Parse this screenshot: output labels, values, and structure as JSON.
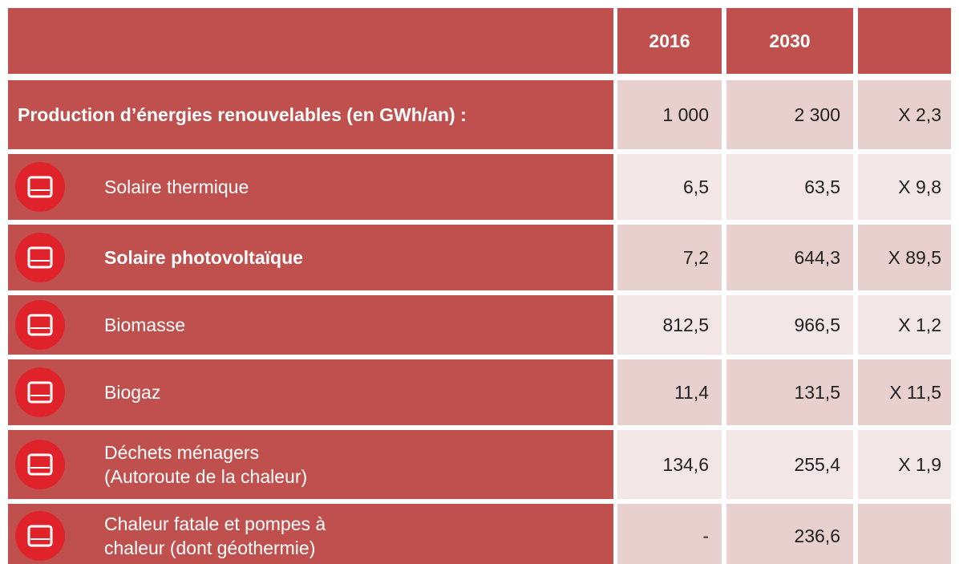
{
  "header": {
    "columns": [
      "2016",
      "2030"
    ]
  },
  "rows": [
    {
      "label": [
        "Production d’énergies renouvelables (en GWh/an) :"
      ],
      "bold": true,
      "icon": false,
      "v2016": "1 000",
      "v2030": "2 300",
      "ratio": "X 2,3"
    },
    {
      "label": [
        "Solaire thermique"
      ],
      "bold": false,
      "icon": true,
      "v2016": "6,5",
      "v2030": "63,5",
      "ratio": "X 9,8"
    },
    {
      "label": [
        "Solaire photovoltaïque"
      ],
      "bold": true,
      "icon": true,
      "v2016": "7,2",
      "v2030": "644,3",
      "ratio": "X 89,5"
    },
    {
      "label": [
        "Biomasse"
      ],
      "bold": false,
      "icon": true,
      "v2016": "812,5",
      "v2030": "966,5",
      "ratio": "X 1,2"
    },
    {
      "label": [
        "Biogaz"
      ],
      "bold": false,
      "icon": true,
      "v2016": "11,4",
      "v2030": "131,5",
      "ratio": "X 11,5"
    },
    {
      "label": [
        "Déchets ménagers",
        "(Autoroute de la chaleur)"
      ],
      "bold": false,
      "icon": true,
      "v2016": "134,6",
      "v2030": "255,4",
      "ratio": "X 1,9"
    },
    {
      "label": [
        "Chaleur fatale et pompes à",
        "chaleur (dont géothermie)"
      ],
      "bold": false,
      "icon": true,
      "v2016": "-",
      "v2030": "236,6"
    }
  ]
}
